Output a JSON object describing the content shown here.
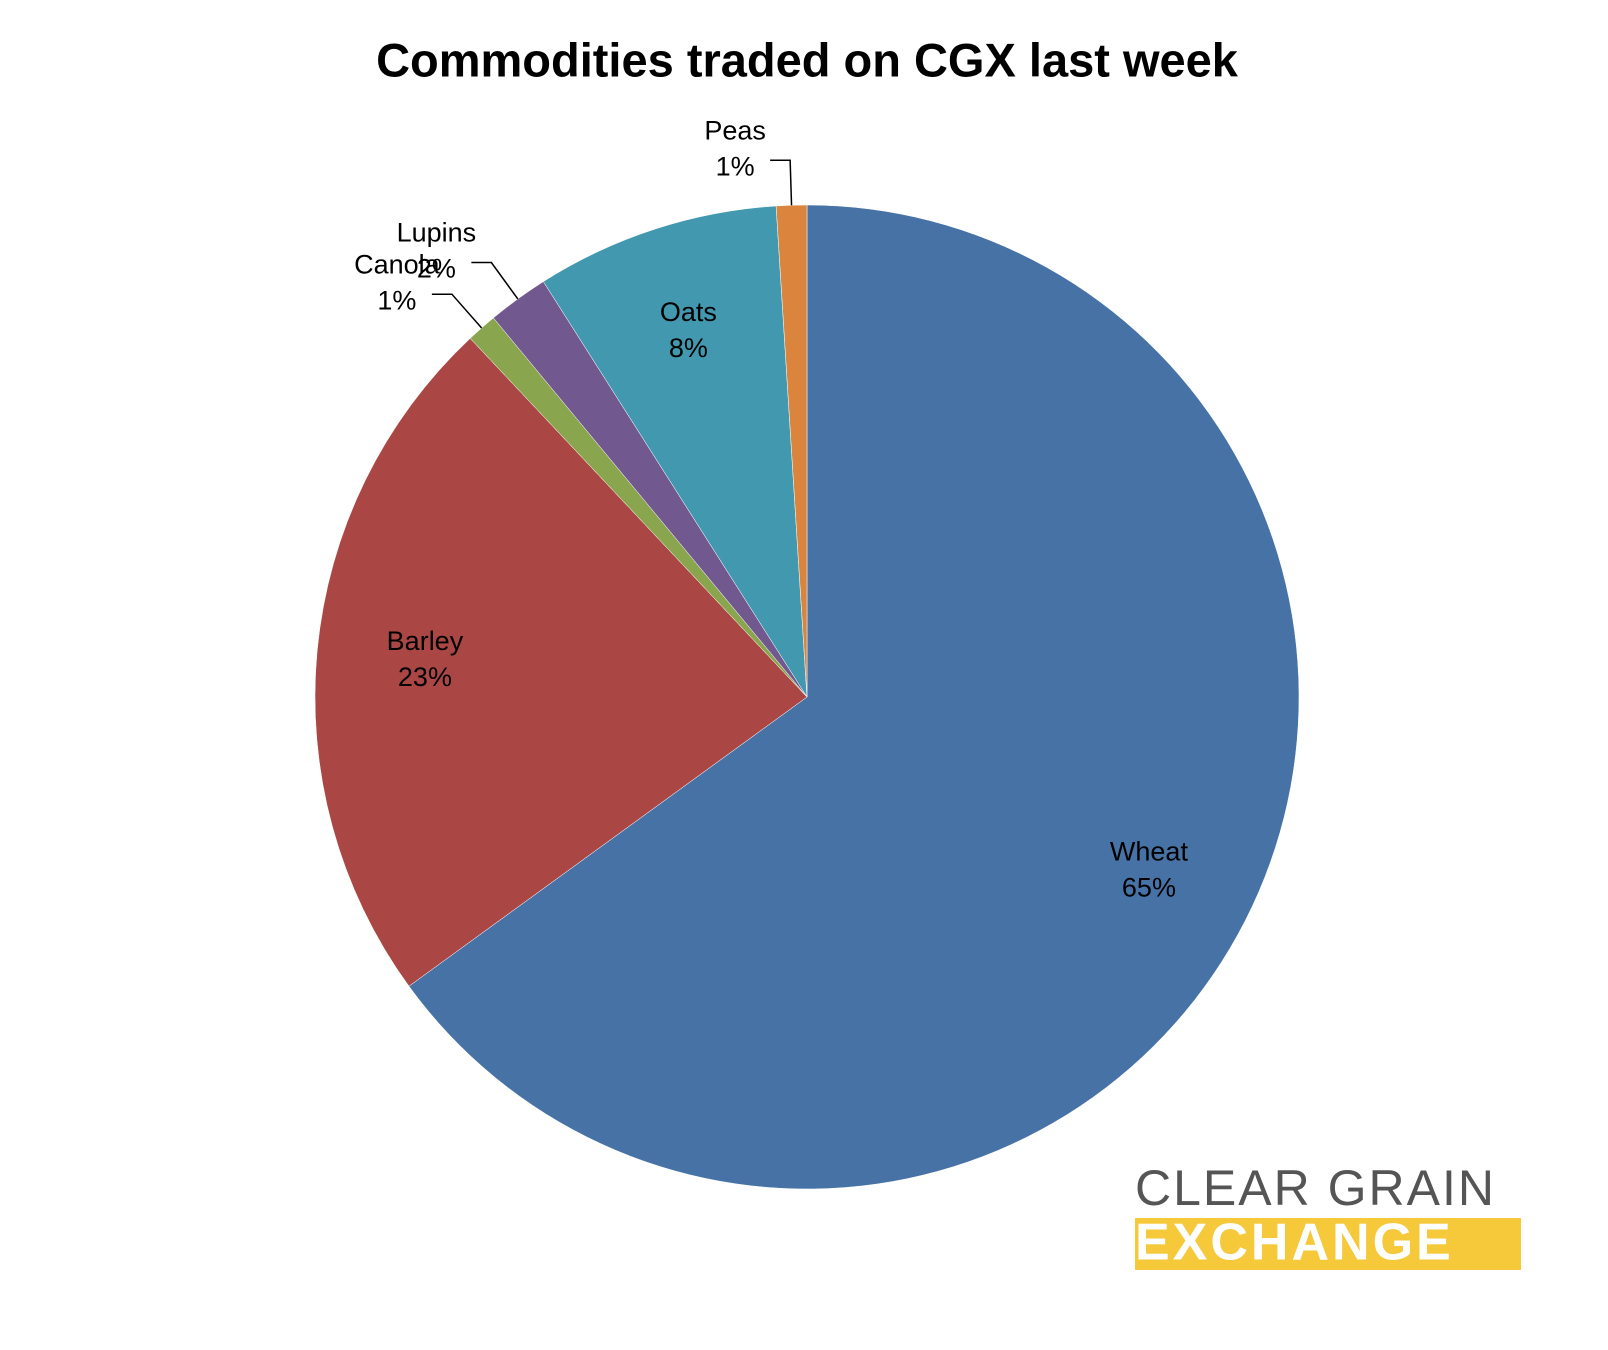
{
  "chart_data": {
    "type": "pie",
    "title": "Commodities traded on CGX last week",
    "categories": [
      "Wheat",
      "Barley",
      "Canola",
      "Lupins",
      "Oats",
      "Peas"
    ],
    "values": [
      65,
      23,
      1,
      2,
      8,
      1
    ],
    "value_labels": [
      "65%",
      "23%",
      "1%",
      "2%",
      "8%",
      "1%"
    ],
    "colors": [
      "#4672a6",
      "#aa4744",
      "#89a54e",
      "#71588f",
      "#4298af",
      "#db843d"
    ]
  },
  "logo": {
    "top": "CLEAR GRAIN",
    "bottom": "EXCHANGE"
  }
}
